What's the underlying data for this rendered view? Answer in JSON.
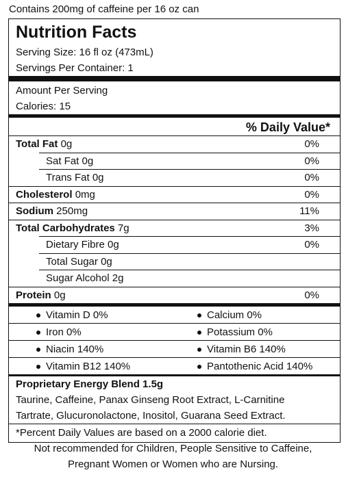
{
  "top_note": "Contains 200mg of caffeine per 16 oz can",
  "panel": {
    "title": "Nutrition Facts",
    "serving_size": "Serving Size: 16 fl oz (473mL)",
    "servings_per_container": "Servings Per Container: 1",
    "amount_per_serving": "Amount Per Serving",
    "calories": "Calories: 15",
    "daily_value_header": "% Daily Value*",
    "nutrients": [
      {
        "name": "Total Fat",
        "amount": "0g",
        "dv": "0%"
      },
      {
        "name": "Sat Fat",
        "amount": "0g",
        "dv": "0%"
      },
      {
        "name": "Trans Fat",
        "amount": "0g",
        "dv": "0%"
      },
      {
        "name": "Cholesterol",
        "amount": "0mg",
        "dv": "0%"
      },
      {
        "name": "Sodium",
        "amount": "250mg",
        "dv": "11%"
      },
      {
        "name": "Total Carbohydrates",
        "amount": "7g",
        "dv": "3%"
      },
      {
        "name": "Dietary Fibre",
        "amount": "0g",
        "dv": "0%"
      },
      {
        "name": "Total Sugar",
        "amount": "0g"
      },
      {
        "name": "Sugar Alcohol",
        "amount": "2g"
      },
      {
        "name": "Protein",
        "amount": "0g",
        "dv": "0%"
      }
    ],
    "vitamins": [
      [
        "Vitamin D 0%",
        "Calcium 0%"
      ],
      [
        "Iron 0%",
        "Potassium 0%"
      ],
      [
        "Niacin 140%",
        "Vitamin B6 140%"
      ],
      [
        "Vitamin B12 140%",
        "Pantothenic Acid 140%"
      ]
    ],
    "blend_title": "Proprietary Energy Blend 1.5g",
    "blend_lines": [
      "Taurine, Caffeine, Panax Ginseng Root Extract, L-Carnitine",
      "Tartrate, Glucuronolactone, Inositol, Guarana Seed Extract."
    ],
    "footnote": "*Percent Daily Values are based on a 2000 calorie diet."
  },
  "warning_lines": [
    "Not recommended for Children, People Sensitive to Caffeine,",
    "Pregnant Women or Women who are Nursing."
  ]
}
